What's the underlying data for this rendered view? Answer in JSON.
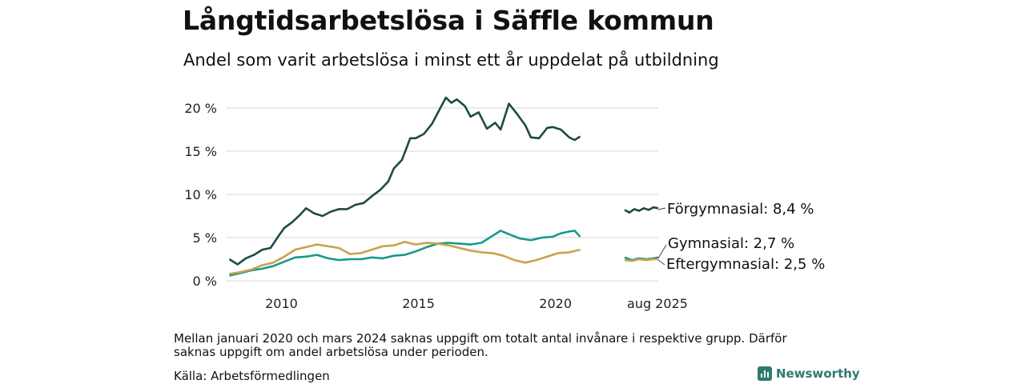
{
  "colors": {
    "forgymnasial": "#1e4a45",
    "gymnasial": "#17998a",
    "eftergymnasial": "#c9a24a",
    "grid": "#dddddd",
    "brand": "#2d7b6f"
  },
  "chart_data": {
    "type": "line",
    "title": "Långtidsarbetslösa i Säffle kommun",
    "subtitle": "Andel som varit arbetslösa i minst ett år uppdelat på utbildning",
    "ylim": [
      0,
      20
    ],
    "yticks": [
      "0 %",
      "5 %",
      "10 %",
      "15 %",
      "20 %"
    ],
    "ytick_values": [
      0,
      5,
      10,
      15,
      20
    ],
    "xticks": [
      "2010",
      "2015",
      "2020"
    ],
    "xtick_values": [
      2010,
      2015,
      2020
    ],
    "xlim": [
      2008.0,
      2021.5
    ],
    "gap_tick": "aug 2025",
    "series": [
      {
        "name": "Förgymnasial",
        "color": "#1e4a45",
        "end_label": "Förgymnasial: 8,4 %",
        "x": [
          2008.1,
          2008.4,
          2008.7,
          2009.0,
          2009.3,
          2009.6,
          2009.9,
          2010.1,
          2010.4,
          2010.7,
          2010.9,
          2011.2,
          2011.5,
          2011.8,
          2012.1,
          2012.4,
          2012.7,
          2013.0,
          2013.3,
          2013.6,
          2013.9,
          2014.1,
          2014.4,
          2014.7,
          2014.9,
          2015.2,
          2015.5,
          2015.8,
          2016.0,
          2016.2,
          2016.4,
          2016.7,
          2016.9,
          2017.2,
          2017.5,
          2017.8,
          2018.0,
          2018.3,
          2018.6,
          2018.9,
          2019.1,
          2019.4,
          2019.7,
          2019.9,
          2020.2,
          2020.5,
          2020.7,
          2020.9
        ],
        "y": [
          2.5,
          1.9,
          2.6,
          3.0,
          3.6,
          3.8,
          5.2,
          6.1,
          6.8,
          7.7,
          8.4,
          7.8,
          7.5,
          8.0,
          8.3,
          8.3,
          8.8,
          9.0,
          9.8,
          10.5,
          11.5,
          13.0,
          14.0,
          16.5,
          16.5,
          17.0,
          18.2,
          20.0,
          21.2,
          20.6,
          21.0,
          20.2,
          19.0,
          19.5,
          17.6,
          18.3,
          17.5,
          20.5,
          19.3,
          18.0,
          16.6,
          16.5,
          17.7,
          17.8,
          17.5,
          16.6,
          16.3,
          16.7
        ],
        "gap_x": [
          2024.2,
          2024.4,
          2024.6,
          2024.8,
          2025.0,
          2025.2,
          2025.4,
          2025.6
        ],
        "gap_y": [
          8.2,
          7.9,
          8.3,
          8.1,
          8.4,
          8.2,
          8.5,
          8.4
        ]
      },
      {
        "name": "Gymnasial",
        "color": "#17998a",
        "end_label": "Gymnasial: 2,7 %",
        "x": [
          2008.1,
          2008.5,
          2008.9,
          2009.3,
          2009.7,
          2010.1,
          2010.5,
          2010.9,
          2011.3,
          2011.7,
          2012.1,
          2012.5,
          2012.9,
          2013.3,
          2013.7,
          2014.1,
          2014.5,
          2014.9,
          2015.3,
          2015.7,
          2016.1,
          2016.5,
          2016.9,
          2017.3,
          2017.7,
          2018.0,
          2018.3,
          2018.7,
          2019.1,
          2019.5,
          2019.9,
          2020.2,
          2020.5,
          2020.7,
          2020.9
        ],
        "y": [
          0.6,
          0.9,
          1.2,
          1.4,
          1.7,
          2.2,
          2.7,
          2.8,
          3.0,
          2.6,
          2.4,
          2.5,
          2.5,
          2.7,
          2.6,
          2.9,
          3.0,
          3.4,
          3.9,
          4.3,
          4.4,
          4.3,
          4.2,
          4.4,
          5.2,
          5.8,
          5.4,
          4.9,
          4.7,
          5.0,
          5.1,
          5.5,
          5.7,
          5.8,
          5.1
        ],
        "gap_x": [
          2024.2,
          2024.5,
          2024.8,
          2025.1,
          2025.4,
          2025.6
        ],
        "gap_y": [
          2.7,
          2.4,
          2.6,
          2.5,
          2.6,
          2.7
        ]
      },
      {
        "name": "Eftergymnasial",
        "color": "#c9a24a",
        "end_label": "Eftergymnasial: 2,5 %",
        "x": [
          2008.1,
          2008.5,
          2008.9,
          2009.3,
          2009.7,
          2010.1,
          2010.5,
          2010.9,
          2011.3,
          2011.7,
          2012.1,
          2012.5,
          2012.9,
          2013.3,
          2013.7,
          2014.1,
          2014.5,
          2014.9,
          2015.3,
          2015.7,
          2016.1,
          2016.5,
          2016.9,
          2017.3,
          2017.7,
          2018.1,
          2018.5,
          2018.9,
          2019.3,
          2019.7,
          2020.1,
          2020.5,
          2020.9
        ],
        "y": [
          0.8,
          1.0,
          1.3,
          1.8,
          2.1,
          2.8,
          3.6,
          3.9,
          4.2,
          4.0,
          3.8,
          3.1,
          3.2,
          3.6,
          4.0,
          4.1,
          4.5,
          4.2,
          4.4,
          4.3,
          4.1,
          3.8,
          3.5,
          3.3,
          3.2,
          2.9,
          2.4,
          2.1,
          2.4,
          2.8,
          3.2,
          3.3,
          3.6
        ],
        "gap_x": [
          2024.2,
          2024.5,
          2024.8,
          2025.1,
          2025.4,
          2025.6
        ],
        "gap_y": [
          2.4,
          2.3,
          2.5,
          2.4,
          2.5,
          2.5
        ]
      }
    ]
  },
  "footer": {
    "note": "Mellan januari 2020 och mars 2024 saknas uppgift om totalt antal invånare i respektive grupp. Därför saknas uppgift om andel arbetslösa under perioden.",
    "source": "Källa: Arbetsförmedlingen",
    "brand": "Newsworthy"
  }
}
